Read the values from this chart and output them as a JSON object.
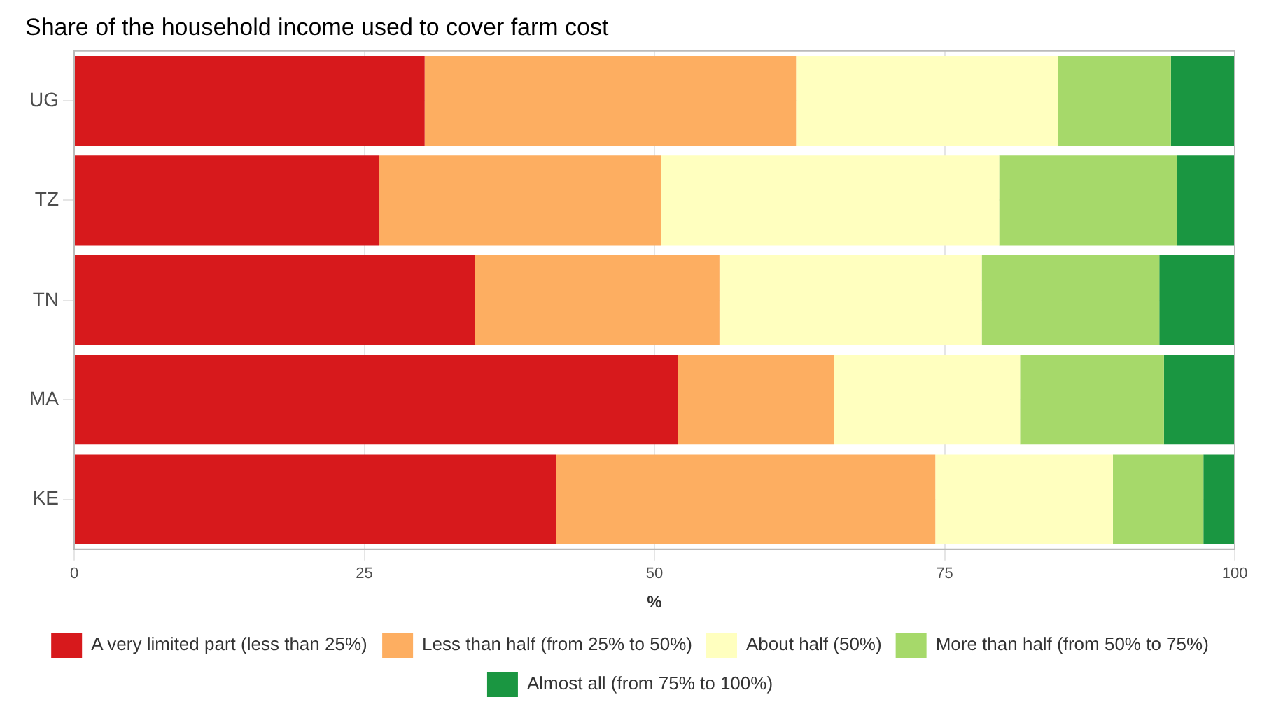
{
  "chart_data": {
    "type": "bar",
    "orientation": "horizontal",
    "stacked": true,
    "title": "Share of the household income used to cover farm cost",
    "xlabel": "%",
    "categories": [
      "UG",
      "TZ",
      "TN",
      "MA",
      "KE"
    ],
    "series": [
      {
        "name": "A very limited part (less than 25%)",
        "color": "#d7191c",
        "values": [
          30.2,
          26.3,
          34.5,
          52.0,
          41.5
        ]
      },
      {
        "name": "Less than half (from 25% to 50%)",
        "color": "#fdae61",
        "values": [
          32.0,
          24.3,
          21.1,
          13.5,
          32.7
        ]
      },
      {
        "name": "About half (50%)",
        "color": "#ffffbf",
        "values": [
          22.6,
          29.1,
          22.6,
          16.0,
          15.3
        ]
      },
      {
        "name": "More than half (from 50% to 75%)",
        "color": "#a6d96a",
        "values": [
          9.7,
          15.3,
          15.3,
          12.4,
          7.8
        ]
      },
      {
        "name": "Almost all (from 75% to 100%)",
        "color": "#1a9641",
        "values": [
          5.5,
          5.0,
          6.5,
          6.1,
          2.7
        ]
      }
    ],
    "xlim": [
      0,
      100
    ],
    "xticks": [
      0,
      25,
      50,
      75,
      100
    ],
    "grid": true,
    "legend": "bottom"
  }
}
